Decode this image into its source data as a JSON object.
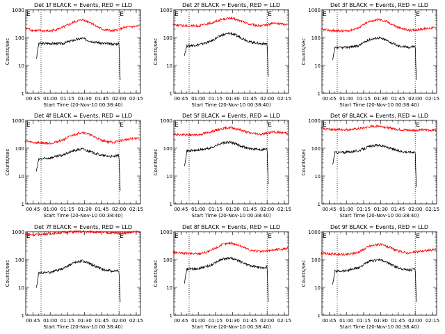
{
  "figure": {
    "ylabel": "Counts/sec",
    "xlabel": "Start Time (20-Nov-10 00:38:40)",
    "ytick_labels": [
      "1",
      "10",
      "100",
      "1000"
    ],
    "xtick_labels": [
      "00:45",
      "01:00",
      "01:15",
      "01:30",
      "01:45",
      "02:00",
      "02:15"
    ],
    "marker_label": "E",
    "colors": {
      "events": "#000000",
      "lld": "#ff0000",
      "axes": "#000000"
    }
  },
  "chart_data": [
    {
      "type": "line",
      "title": "Det 1f BLACK = Events, RED = LLD",
      "yscale": "log",
      "ylim": [
        1,
        1000
      ],
      "xlim": [
        "00:38:40",
        "02:18:40"
      ],
      "event_start": "00:48:00",
      "event_end": "02:02:00",
      "markers": [
        "00:38:40",
        "02:00:00"
      ],
      "dotted_lines": [
        "00:52:00",
        "02:00:00"
      ],
      "series": [
        {
          "name": "Events",
          "x": [
            "00:48",
            "00:50",
            "01:00",
            "01:10",
            "01:20",
            "01:28",
            "01:35",
            "01:45",
            "01:55",
            "02:00",
            "02:01"
          ],
          "values": [
            18,
            60,
            62,
            60,
            80,
            95,
            75,
            62,
            58,
            60,
            3
          ]
        },
        {
          "name": "LLD",
          "x": [
            "00:38",
            "00:45",
            "01:00",
            "01:10",
            "01:20",
            "01:28",
            "01:35",
            "01:45",
            "01:55",
            "02:05",
            "02:18"
          ],
          "values": [
            230,
            180,
            170,
            220,
            350,
            440,
            350,
            200,
            170,
            230,
            260
          ]
        }
      ]
    },
    {
      "type": "line",
      "title": "Det 2f BLACK = Events, RED = LLD",
      "yscale": "log",
      "ylim": [
        1,
        1000
      ],
      "xlim": [
        "00:38:40",
        "02:18:40"
      ],
      "event_start": "00:48:00",
      "event_end": "02:02:00",
      "markers": [
        "00:38:40",
        "02:00:00"
      ],
      "dotted_lines": [
        "00:52:00",
        "02:00:00"
      ],
      "series": [
        {
          "name": "Events",
          "x": [
            "00:48",
            "00:50",
            "01:00",
            "01:10",
            "01:20",
            "01:28",
            "01:35",
            "01:45",
            "01:55",
            "02:00",
            "02:01"
          ],
          "values": [
            25,
            50,
            55,
            70,
            120,
            145,
            110,
            70,
            60,
            60,
            4
          ]
        },
        {
          "name": "LLD",
          "x": [
            "00:38",
            "00:45",
            "01:00",
            "01:10",
            "01:20",
            "01:28",
            "01:35",
            "01:45",
            "01:55",
            "02:05",
            "02:18"
          ],
          "values": [
            300,
            270,
            260,
            320,
            450,
            500,
            420,
            300,
            260,
            330,
            300
          ]
        }
      ]
    },
    {
      "type": "line",
      "title": "Det 3f BLACK = Events, RED = LLD",
      "yscale": "log",
      "ylim": [
        1,
        1000
      ],
      "xlim": [
        "00:38:40",
        "02:18:40"
      ],
      "event_start": "00:48:00",
      "event_end": "02:02:00",
      "markers": [
        "00:38:40",
        "02:00:00"
      ],
      "dotted_lines": [
        "00:52:00",
        "02:00:00"
      ],
      "series": [
        {
          "name": "Events",
          "x": [
            "00:48",
            "00:50",
            "01:00",
            "01:10",
            "01:20",
            "01:28",
            "01:35",
            "01:45",
            "01:55",
            "02:00",
            "02:01"
          ],
          "values": [
            15,
            42,
            45,
            50,
            85,
            100,
            80,
            50,
            45,
            50,
            3
          ]
        },
        {
          "name": "LLD",
          "x": [
            "00:38",
            "00:45",
            "01:00",
            "01:10",
            "01:20",
            "01:28",
            "01:35",
            "01:45",
            "01:55",
            "02:05",
            "02:18"
          ],
          "values": [
            200,
            180,
            170,
            220,
            380,
            450,
            380,
            230,
            180,
            200,
            230
          ]
        }
      ]
    },
    {
      "type": "line",
      "title": "Det 4f BLACK = Events, RED = LLD",
      "yscale": "log",
      "ylim": [
        1,
        1000
      ],
      "xlim": [
        "00:38:40",
        "02:18:40"
      ],
      "event_start": "00:48:00",
      "event_end": "02:02:00",
      "markers": [
        "00:38:40",
        "02:00:00"
      ],
      "dotted_lines": [
        "00:52:00",
        "02:00:00"
      ],
      "series": [
        {
          "name": "Events",
          "x": [
            "00:48",
            "00:50",
            "01:00",
            "01:10",
            "01:20",
            "01:28",
            "01:35",
            "01:45",
            "01:55",
            "02:00",
            "02:01"
          ],
          "values": [
            15,
            40,
            45,
            55,
            80,
            95,
            75,
            55,
            50,
            55,
            3
          ]
        },
        {
          "name": "LLD",
          "x": [
            "00:38",
            "00:45",
            "01:00",
            "01:10",
            "01:20",
            "01:28",
            "01:35",
            "01:45",
            "01:55",
            "02:05",
            "02:18"
          ],
          "values": [
            180,
            160,
            150,
            190,
            300,
            380,
            300,
            190,
            160,
            200,
            240
          ]
        }
      ]
    },
    {
      "type": "line",
      "title": "Det 5f BLACK = Events, RED = LLD",
      "yscale": "log",
      "ylim": [
        1,
        1000
      ],
      "xlim": [
        "00:38:40",
        "02:18:40"
      ],
      "event_start": "00:48:00",
      "event_end": "02:02:00",
      "markers": [
        "00:38:40",
        "02:00:00"
      ],
      "dotted_lines": [
        "00:52:00",
        "02:00:00"
      ],
      "series": [
        {
          "name": "Events",
          "x": [
            "00:48",
            "00:50",
            "01:00",
            "01:10",
            "01:20",
            "01:28",
            "01:35",
            "01:45",
            "01:55",
            "02:00",
            "02:01"
          ],
          "values": [
            25,
            80,
            85,
            100,
            150,
            165,
            130,
            95,
            90,
            95,
            5
          ]
        },
        {
          "name": "LLD",
          "x": [
            "00:38",
            "00:45",
            "01:00",
            "01:10",
            "01:20",
            "01:28",
            "01:35",
            "01:45",
            "01:55",
            "02:05",
            "02:18"
          ],
          "values": [
            330,
            300,
            300,
            380,
            500,
            560,
            480,
            350,
            320,
            380,
            350
          ]
        }
      ]
    },
    {
      "type": "line",
      "title": "Det 6f BLACK = Events, RED = LLD",
      "yscale": "log",
      "ylim": [
        1,
        1000
      ],
      "xlim": [
        "00:38:40",
        "02:18:40"
      ],
      "event_start": "00:48:00",
      "event_end": "02:02:00",
      "markers": [
        "00:38:40",
        "02:00:00"
      ],
      "dotted_lines": [
        "00:52:00",
        "02:00:00"
      ],
      "series": [
        {
          "name": "Events",
          "x": [
            "00:48",
            "00:50",
            "01:00",
            "01:10",
            "01:20",
            "01:28",
            "01:35",
            "01:45",
            "01:55",
            "02:00",
            "02:01"
          ],
          "values": [
            25,
            70,
            72,
            80,
            115,
            130,
            110,
            80,
            72,
            75,
            4
          ]
        },
        {
          "name": "LLD",
          "x": [
            "00:38",
            "00:45",
            "01:00",
            "01:10",
            "01:20",
            "01:28",
            "01:35",
            "01:45",
            "01:55",
            "02:05",
            "02:18"
          ],
          "values": [
            520,
            480,
            460,
            490,
            580,
            640,
            560,
            470,
            440,
            450,
            450
          ]
        }
      ]
    },
    {
      "type": "line",
      "title": "Det 7f BLACK = Events, RED = LLD",
      "yscale": "log",
      "ylim": [
        1,
        1000
      ],
      "xlim": [
        "00:38:40",
        "02:18:40"
      ],
      "event_start": "00:48:00",
      "event_end": "02:02:00",
      "markers": [
        "00:38:40",
        "02:00:00"
      ],
      "dotted_lines": [
        "00:52:00",
        "02:00:00"
      ],
      "series": [
        {
          "name": "Events",
          "x": [
            "00:48",
            "00:50",
            "01:00",
            "01:10",
            "01:20",
            "01:28",
            "01:35",
            "01:45",
            "01:55",
            "02:00",
            "02:01"
          ],
          "values": [
            10,
            33,
            35,
            45,
            75,
            90,
            70,
            45,
            38,
            40,
            3
          ]
        },
        {
          "name": "LLD",
          "x": [
            "00:38",
            "00:45",
            "01:00",
            "01:10",
            "01:20",
            "01:28",
            "01:35",
            "01:45",
            "01:55",
            "02:05",
            "02:18"
          ],
          "values": [
            800,
            780,
            850,
            950,
            1000,
            1000,
            1000,
            950,
            900,
            900,
            1000
          ]
        }
      ]
    },
    {
      "type": "line",
      "title": "Det 8f BLACK = Events, RED = LLD",
      "yscale": "log",
      "ylim": [
        1,
        1000
      ],
      "xlim": [
        "00:38:40",
        "02:18:40"
      ],
      "event_start": "00:48:00",
      "event_end": "02:02:00",
      "markers": [
        "00:38:40",
        "02:00:00"
      ],
      "dotted_lines": [
        "00:52:00",
        "02:00:00"
      ],
      "series": [
        {
          "name": "Events",
          "x": [
            "00:48",
            "00:50",
            "01:00",
            "01:10",
            "01:20",
            "01:28",
            "01:35",
            "01:45",
            "01:55",
            "02:00",
            "02:01"
          ],
          "values": [
            15,
            45,
            48,
            60,
            100,
            115,
            90,
            60,
            50,
            55,
            3
          ]
        },
        {
          "name": "LLD",
          "x": [
            "00:38",
            "00:45",
            "01:00",
            "01:10",
            "01:20",
            "01:28",
            "01:35",
            "01:45",
            "01:55",
            "02:05",
            "02:18"
          ],
          "values": [
            180,
            170,
            160,
            200,
            330,
            400,
            330,
            220,
            190,
            220,
            250
          ]
        }
      ]
    },
    {
      "type": "line",
      "title": "Det 9f BLACK = Events, RED = LLD",
      "yscale": "log",
      "ylim": [
        1,
        1000
      ],
      "xlim": [
        "00:38:40",
        "02:18:40"
      ],
      "event_start": "00:48:00",
      "event_end": "02:02:00",
      "markers": [
        "00:38:40",
        "02:00:00"
      ],
      "dotted_lines": [
        "00:52:00",
        "02:00:00"
      ],
      "series": [
        {
          "name": "Events",
          "x": [
            "00:48",
            "00:50",
            "01:00",
            "01:10",
            "01:20",
            "01:28",
            "01:35",
            "01:45",
            "01:55",
            "02:00",
            "02:01"
          ],
          "values": [
            12,
            38,
            40,
            50,
            85,
            100,
            80,
            50,
            42,
            45,
            3
          ]
        },
        {
          "name": "LLD",
          "x": [
            "00:38",
            "00:45",
            "01:00",
            "01:10",
            "01:20",
            "01:28",
            "01:35",
            "01:45",
            "01:55",
            "02:05",
            "02:18"
          ],
          "values": [
            170,
            160,
            150,
            180,
            300,
            360,
            300,
            200,
            170,
            200,
            230
          ]
        }
      ]
    }
  ]
}
